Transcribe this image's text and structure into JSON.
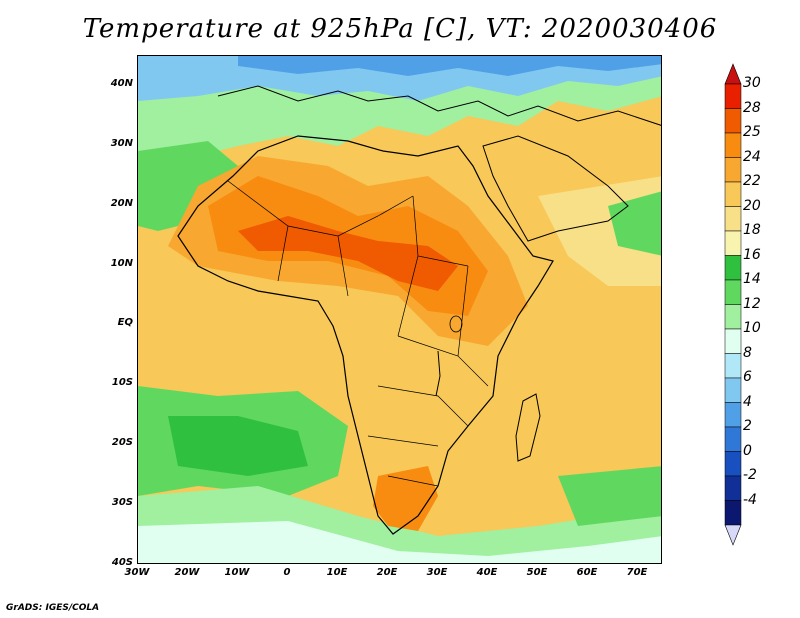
{
  "title": "Temperature at 925hPa [C], VT: 2020030406",
  "credit": "GrADS: IGES/COLA",
  "map": {
    "lon_range": [
      -30,
      75
    ],
    "lat_range": [
      -40,
      45
    ],
    "lat_ticks": [
      {
        "lat": 40,
        "label": "40N"
      },
      {
        "lat": 30,
        "label": "30N"
      },
      {
        "lat": 20,
        "label": "20N"
      },
      {
        "lat": 10,
        "label": "10N"
      },
      {
        "lat": 0,
        "label": "EQ"
      },
      {
        "lat": -10,
        "label": "10S"
      },
      {
        "lat": -20,
        "label": "20S"
      },
      {
        "lat": -30,
        "label": "30S"
      },
      {
        "lat": -40,
        "label": "40S"
      }
    ],
    "lon_ticks": [
      {
        "lon": -30,
        "label": "30W"
      },
      {
        "lon": -20,
        "label": "20W"
      },
      {
        "lon": -10,
        "label": "10W"
      },
      {
        "lon": 0,
        "label": "0"
      },
      {
        "lon": 10,
        "label": "10E"
      },
      {
        "lon": 20,
        "label": "20E"
      },
      {
        "lon": 30,
        "label": "30E"
      },
      {
        "lon": 40,
        "label": "40E"
      },
      {
        "lon": 50,
        "label": "50E"
      },
      {
        "lon": 60,
        "label": "60E"
      },
      {
        "lon": 70,
        "label": "70E"
      }
    ]
  },
  "colorbar": {
    "labels": [
      "30",
      "28",
      "25",
      "24",
      "22",
      "20",
      "18",
      "16",
      "14",
      "12",
      "10",
      "8",
      "6",
      "4",
      "2",
      "0",
      "-2",
      "-4"
    ],
    "colors": [
      "#e82000",
      "#f05a00",
      "#f88c10",
      "#f8a830",
      "#f8c858",
      "#f8e088",
      "#f8f4b0",
      "#30c040",
      "#60d860",
      "#a0f0a0",
      "#e0fff0",
      "#b0e8f8",
      "#80c8f0",
      "#50a0e8",
      "#3078d8",
      "#1850c0",
      "#103098",
      "#0c1870"
    ],
    "top_color": "#c81010",
    "bottom_color": "#d8d8f8"
  }
}
